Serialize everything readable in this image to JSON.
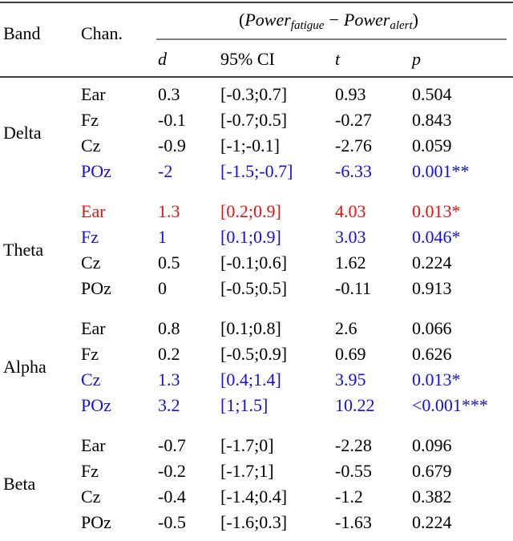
{
  "header": {
    "band": "Band",
    "chan": "Chan.",
    "formula": {
      "open": "(",
      "term1": "Power",
      "sub1": "fatigue",
      "minus": "−",
      "term2": "Power",
      "sub2": "alert",
      "close": ")"
    },
    "columns": [
      "d",
      "95% CI",
      "t",
      "p"
    ]
  },
  "bands": [
    {
      "name": "Delta",
      "rows": [
        {
          "cells": [
            "Ear",
            "0.3",
            "[-0.3;0.7]",
            "0.93",
            "0.504"
          ]
        },
        {
          "cells": [
            "Fz",
            "-0.1",
            "[-0.7;0.5]",
            "-0.27",
            "0.843"
          ]
        },
        {
          "cells": [
            "Cz",
            "-0.9",
            "[-1;-0.1]",
            "-2.76",
            "0.059"
          ]
        },
        {
          "cells": [
            "POz",
            "-2",
            "[-1.5;-0.7]",
            "-6.33",
            "0.001**"
          ],
          "color": "#1010e0"
        }
      ]
    },
    {
      "name": "Theta",
      "rows": [
        {
          "cells": [
            "Ear",
            "1.3",
            "[0.2;0.9]",
            "4.03",
            "0.013*"
          ],
          "color": "#e81010"
        },
        {
          "cells": [
            "Fz",
            "1",
            "[0.1;0.9]",
            "3.03",
            "0.046*"
          ],
          "color": "#1010e0"
        },
        {
          "cells": [
            "Cz",
            "0.5",
            "[-0.1;0.6]",
            "1.62",
            "0.224"
          ]
        },
        {
          "cells": [
            "POz",
            "0",
            "[-0.5;0.5]",
            "-0.11",
            "0.913"
          ]
        }
      ]
    },
    {
      "name": "Alpha",
      "rows": [
        {
          "cells": [
            "Ear",
            "0.8",
            "[0.1;0.8]",
            "2.6",
            "0.066"
          ]
        },
        {
          "cells": [
            "Fz",
            "0.2",
            "[-0.5;0.9]",
            "0.69",
            "0.626"
          ]
        },
        {
          "cells": [
            "Cz",
            "1.3",
            "[0.4;1.4]",
            "3.95",
            "0.013*"
          ],
          "color": "#1010e0"
        },
        {
          "cells": [
            "POz",
            "3.2",
            "[1;1.5]",
            "10.22",
            "<0.001***"
          ],
          "color": "#1010e0"
        }
      ]
    },
    {
      "name": "Beta",
      "rows": [
        {
          "cells": [
            "Ear",
            "-0.7",
            "[-1.7;0]",
            "-2.28",
            "0.096"
          ]
        },
        {
          "cells": [
            "Fz",
            "-0.2",
            "[-1.7;1]",
            "-0.55",
            "0.679"
          ]
        },
        {
          "cells": [
            "Cz",
            "-0.4",
            "[-1.4;0.4]",
            "-1.2",
            "0.382"
          ]
        },
        {
          "cells": [
            "POz",
            "-0.5",
            "[-1.6;0.3]",
            "-1.63",
            "0.224"
          ]
        }
      ]
    }
  ]
}
